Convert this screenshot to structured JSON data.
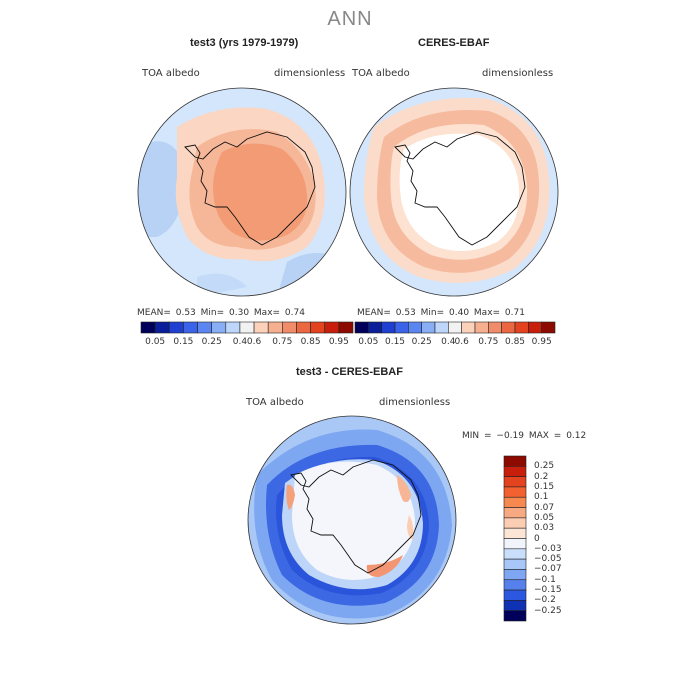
{
  "title": "ANN",
  "panels": [
    {
      "title": "test3 (yrs 1979-1979)",
      "variable": "TOA albedo",
      "units": "dimensionless",
      "stats": "MEAN=   0.53  Min=   0.30  Max=   0.74"
    },
    {
      "title": "CERES-EBAF",
      "variable": "TOA albedo",
      "units": "dimensionless",
      "stats": "MEAN=   0.53  Min=   0.40  Max=   0.71"
    },
    {
      "title": "test3 - CERES-EBAF",
      "variable": "TOA albedo",
      "units": "dimensionless",
      "stats": "MIN =  −0.19  MAX =   0.12"
    }
  ],
  "colorbar_horizontal": {
    "colors": [
      "#00005a",
      "#0a1f99",
      "#1f3fd1",
      "#3a63ea",
      "#5b86f2",
      "#89aef5",
      "#bdd6fa",
      "#f2f2f2",
      "#fbd1b9",
      "#f6b090",
      "#f08c6a",
      "#eb6741",
      "#e4431f",
      "#c81f0c",
      "#8c0a00"
    ],
    "tick_labels": [
      "0.05",
      "0.15",
      "0.25",
      "0.4",
      "0.6",
      "0.75",
      "0.85",
      "0.95"
    ]
  },
  "colorbar_vertical": {
    "colors": [
      "#8c0a00",
      "#c81f0c",
      "#e4431f",
      "#f2612f",
      "#f7884f",
      "#f7aa82",
      "#fbcdb2",
      "#fde5d6",
      "#f2f4fb",
      "#c9defb",
      "#a8c7f8",
      "#7fa6f2",
      "#5680ec",
      "#2c57e0",
      "#0f31b4",
      "#00005a"
    ],
    "tick_labels": [
      "0.25",
      "0.2",
      "0.15",
      "0.1",
      "0.07",
      "0.05",
      "0.03",
      "0",
      "−0.03",
      "−0.05",
      "−0.07",
      "−0.1",
      "−0.15",
      "−0.2",
      "−0.25"
    ]
  }
}
